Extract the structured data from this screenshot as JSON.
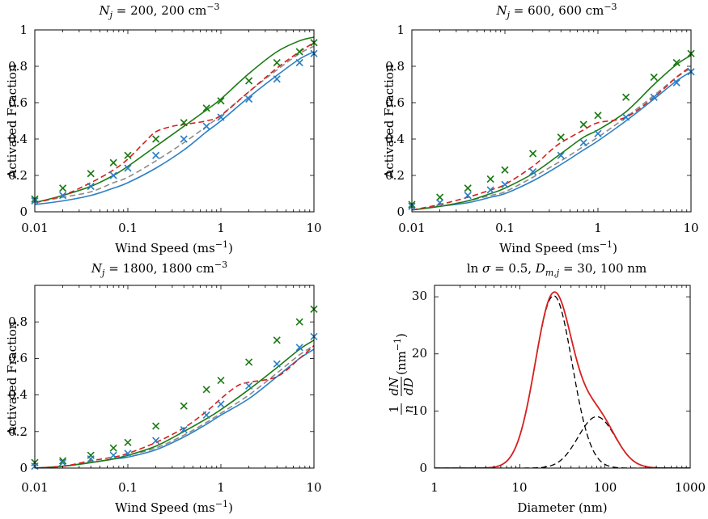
{
  "figure": {
    "colors": {
      "blue": "#2b7fc4",
      "green": "#1a7a12",
      "red": "#d62020",
      "gray": "#8c8c8c",
      "black": "#000000"
    }
  },
  "chart_data": [
    {
      "type": "line",
      "title": "N_j = 200, 200 cm^-3",
      "xlabel": "Wind Speed (ms^-1)",
      "ylabel": "Activated Fraction",
      "xscale": "log",
      "xlim": [
        0.01,
        10
      ],
      "ylim": [
        0,
        1
      ],
      "xticks": [
        "0.01",
        "0.1",
        "1",
        "10"
      ],
      "yticks": [
        "0",
        "0.2",
        "0.4",
        "0.6",
        "0.8",
        "1"
      ],
      "series": [
        {
          "style": "blue-solid",
          "x": [
            0.01,
            0.02,
            0.04,
            0.07,
            0.1,
            0.2,
            0.4,
            0.7,
            1,
            2,
            4,
            7,
            10
          ],
          "y": [
            0.04,
            0.06,
            0.09,
            0.13,
            0.16,
            0.24,
            0.34,
            0.44,
            0.5,
            0.63,
            0.75,
            0.84,
            0.88
          ]
        },
        {
          "style": "gray-dashed",
          "x": [
            0.01,
            0.02,
            0.04,
            0.07,
            0.1,
            0.2,
            0.4,
            0.7,
            1,
            2,
            4,
            7,
            10
          ],
          "y": [
            0.05,
            0.08,
            0.11,
            0.16,
            0.19,
            0.28,
            0.38,
            0.47,
            0.53,
            0.66,
            0.78,
            0.87,
            0.91
          ]
        },
        {
          "style": "green-solid",
          "x": [
            0.01,
            0.02,
            0.04,
            0.07,
            0.1,
            0.2,
            0.4,
            0.7,
            1,
            2,
            4,
            7,
            10
          ],
          "y": [
            0.05,
            0.09,
            0.14,
            0.2,
            0.25,
            0.36,
            0.47,
            0.56,
            0.62,
            0.76,
            0.88,
            0.94,
            0.96
          ]
        },
        {
          "style": "red-dashed",
          "x": [
            0.01,
            0.02,
            0.04,
            0.07,
            0.1,
            0.15,
            0.2,
            0.3,
            0.4,
            0.7,
            1,
            2,
            4,
            7,
            10
          ],
          "y": [
            0.05,
            0.09,
            0.16,
            0.23,
            0.29,
            0.38,
            0.44,
            0.47,
            0.48,
            0.5,
            0.53,
            0.66,
            0.79,
            0.88,
            0.93
          ]
        },
        {
          "style": "green-x",
          "x": [
            0.01,
            0.02,
            0.04,
            0.07,
            0.1,
            0.2,
            0.4,
            0.7,
            1,
            2,
            4,
            7,
            10
          ],
          "y": [
            0.07,
            0.13,
            0.21,
            0.27,
            0.31,
            0.4,
            0.49,
            0.57,
            0.61,
            0.72,
            0.82,
            0.88,
            0.93
          ]
        },
        {
          "style": "blue-x",
          "x": [
            0.01,
            0.02,
            0.04,
            0.07,
            0.1,
            0.2,
            0.4,
            0.7,
            1,
            2,
            4,
            7,
            10
          ],
          "y": [
            0.06,
            0.09,
            0.14,
            0.2,
            0.24,
            0.31,
            0.4,
            0.47,
            0.52,
            0.62,
            0.73,
            0.82,
            0.87
          ]
        }
      ]
    },
    {
      "type": "line",
      "title": "N_j = 600, 600 cm^-3",
      "xlabel": "Wind Speed (ms^-1)",
      "ylabel": "Activated Fraction",
      "xscale": "log",
      "xlim": [
        0.01,
        10
      ],
      "ylim": [
        0,
        1
      ],
      "xticks": [
        "0.01",
        "0.1",
        "1",
        "10"
      ],
      "yticks": [
        "0",
        "0.2",
        "0.4",
        "0.6",
        "0.8",
        "1"
      ],
      "series": [
        {
          "style": "blue-solid",
          "x": [
            0.01,
            0.02,
            0.04,
            0.07,
            0.1,
            0.2,
            0.4,
            0.7,
            1,
            2,
            4,
            7,
            10
          ],
          "y": [
            0.01,
            0.03,
            0.05,
            0.08,
            0.1,
            0.17,
            0.26,
            0.34,
            0.39,
            0.5,
            0.62,
            0.72,
            0.77
          ]
        },
        {
          "style": "gray-dashed",
          "x": [
            0.01,
            0.02,
            0.04,
            0.07,
            0.1,
            0.2,
            0.4,
            0.7,
            1,
            2,
            4,
            7,
            10
          ],
          "y": [
            0.01,
            0.03,
            0.06,
            0.09,
            0.11,
            0.19,
            0.28,
            0.36,
            0.41,
            0.52,
            0.64,
            0.74,
            0.79
          ]
        },
        {
          "style": "green-solid",
          "x": [
            0.01,
            0.02,
            0.04,
            0.07,
            0.1,
            0.2,
            0.4,
            0.7,
            1,
            2,
            4,
            7,
            10
          ],
          "y": [
            0.01,
            0.03,
            0.06,
            0.1,
            0.13,
            0.21,
            0.32,
            0.41,
            0.45,
            0.55,
            0.7,
            0.81,
            0.86
          ]
        },
        {
          "style": "red-dashed",
          "x": [
            0.01,
            0.02,
            0.04,
            0.07,
            0.1,
            0.2,
            0.3,
            0.4,
            0.7,
            1,
            2,
            4,
            7,
            10
          ],
          "y": [
            0.01,
            0.04,
            0.08,
            0.12,
            0.15,
            0.25,
            0.33,
            0.38,
            0.45,
            0.49,
            0.52,
            0.63,
            0.74,
            0.8
          ]
        },
        {
          "style": "green-x",
          "x": [
            0.01,
            0.02,
            0.04,
            0.07,
            0.1,
            0.2,
            0.4,
            0.7,
            1,
            2,
            4,
            7,
            10
          ],
          "y": [
            0.04,
            0.08,
            0.13,
            0.18,
            0.23,
            0.32,
            0.41,
            0.48,
            0.53,
            0.63,
            0.74,
            0.82,
            0.87
          ]
        },
        {
          "style": "blue-x",
          "x": [
            0.01,
            0.02,
            0.04,
            0.07,
            0.1,
            0.2,
            0.4,
            0.7,
            1,
            2,
            4,
            7,
            10
          ],
          "y": [
            0.03,
            0.05,
            0.09,
            0.12,
            0.15,
            0.22,
            0.31,
            0.38,
            0.43,
            0.52,
            0.63,
            0.71,
            0.77
          ]
        }
      ]
    },
    {
      "type": "line",
      "title": "N_j = 1800, 1800 cm^-3",
      "xlabel": "Wind Speed (ms^-1)",
      "ylabel": "Activated Fraction",
      "xscale": "log",
      "xlim": [
        0.01,
        10
      ],
      "ylim": [
        0,
        1
      ],
      "xticks": [
        "0.01",
        "0.1",
        "1",
        "10"
      ],
      "yticks": [
        "0",
        "0.2",
        "0.4",
        "0.6",
        "0.8"
      ],
      "series": [
        {
          "style": "blue-solid",
          "x": [
            0.01,
            0.02,
            0.04,
            0.07,
            0.1,
            0.2,
            0.4,
            0.7,
            1,
            2,
            4,
            7,
            10
          ],
          "y": [
            0.0,
            0.01,
            0.03,
            0.05,
            0.06,
            0.1,
            0.17,
            0.24,
            0.29,
            0.38,
            0.5,
            0.6,
            0.65
          ]
        },
        {
          "style": "gray-dashed",
          "x": [
            0.01,
            0.02,
            0.04,
            0.07,
            0.1,
            0.2,
            0.4,
            0.7,
            1,
            2,
            4,
            7,
            10
          ],
          "y": [
            0.0,
            0.01,
            0.03,
            0.05,
            0.07,
            0.11,
            0.18,
            0.25,
            0.3,
            0.4,
            0.52,
            0.62,
            0.67
          ]
        },
        {
          "style": "green-solid",
          "x": [
            0.01,
            0.02,
            0.04,
            0.07,
            0.1,
            0.2,
            0.4,
            0.7,
            1,
            2,
            4,
            7,
            10
          ],
          "y": [
            0.0,
            0.01,
            0.03,
            0.05,
            0.07,
            0.12,
            0.2,
            0.27,
            0.32,
            0.43,
            0.55,
            0.65,
            0.7
          ]
        },
        {
          "style": "red-dashed",
          "x": [
            0.01,
            0.02,
            0.04,
            0.07,
            0.1,
            0.2,
            0.4,
            0.7,
            1,
            1.5,
            2,
            4,
            7,
            10
          ],
          "y": [
            0.0,
            0.01,
            0.04,
            0.06,
            0.08,
            0.14,
            0.22,
            0.31,
            0.38,
            0.45,
            0.47,
            0.5,
            0.6,
            0.67
          ]
        },
        {
          "style": "green-x",
          "x": [
            0.01,
            0.02,
            0.04,
            0.07,
            0.1,
            0.2,
            0.4,
            0.7,
            1,
            2,
            4,
            7,
            10
          ],
          "y": [
            0.03,
            0.04,
            0.07,
            0.11,
            0.14,
            0.23,
            0.34,
            0.43,
            0.48,
            0.58,
            0.7,
            0.8,
            0.87
          ]
        },
        {
          "style": "blue-x",
          "x": [
            0.01,
            0.02,
            0.04,
            0.07,
            0.1,
            0.2,
            0.4,
            0.7,
            1,
            2,
            4,
            7,
            10
          ],
          "y": [
            0.01,
            0.03,
            0.05,
            0.07,
            0.08,
            0.15,
            0.21,
            0.29,
            0.35,
            0.45,
            0.57,
            0.66,
            0.72
          ]
        }
      ]
    },
    {
      "type": "line",
      "title": "ln σ = 0.5, D_m,j = 30, 100 nm",
      "xlabel": "Diameter (nm)",
      "ylabel": "1/n dN/dD (nm^-1)",
      "xscale": "log",
      "xlim": [
        1,
        1000
      ],
      "ylim": [
        0,
        32
      ],
      "xticks": [
        "1",
        "10",
        "100",
        "1000"
      ],
      "yticks": [
        "0",
        "10",
        "20",
        "30"
      ],
      "series": [
        {
          "style": "black-dashed",
          "lognormal": {
            "amp": 30.2,
            "center": 25,
            "sigma": 0.5
          }
        },
        {
          "style": "black-dashed",
          "lognormal": {
            "amp": 9.0,
            "center": 80,
            "sigma": 0.5
          }
        },
        {
          "style": "red-solid",
          "sum_of_lognormals": true
        }
      ]
    }
  ]
}
